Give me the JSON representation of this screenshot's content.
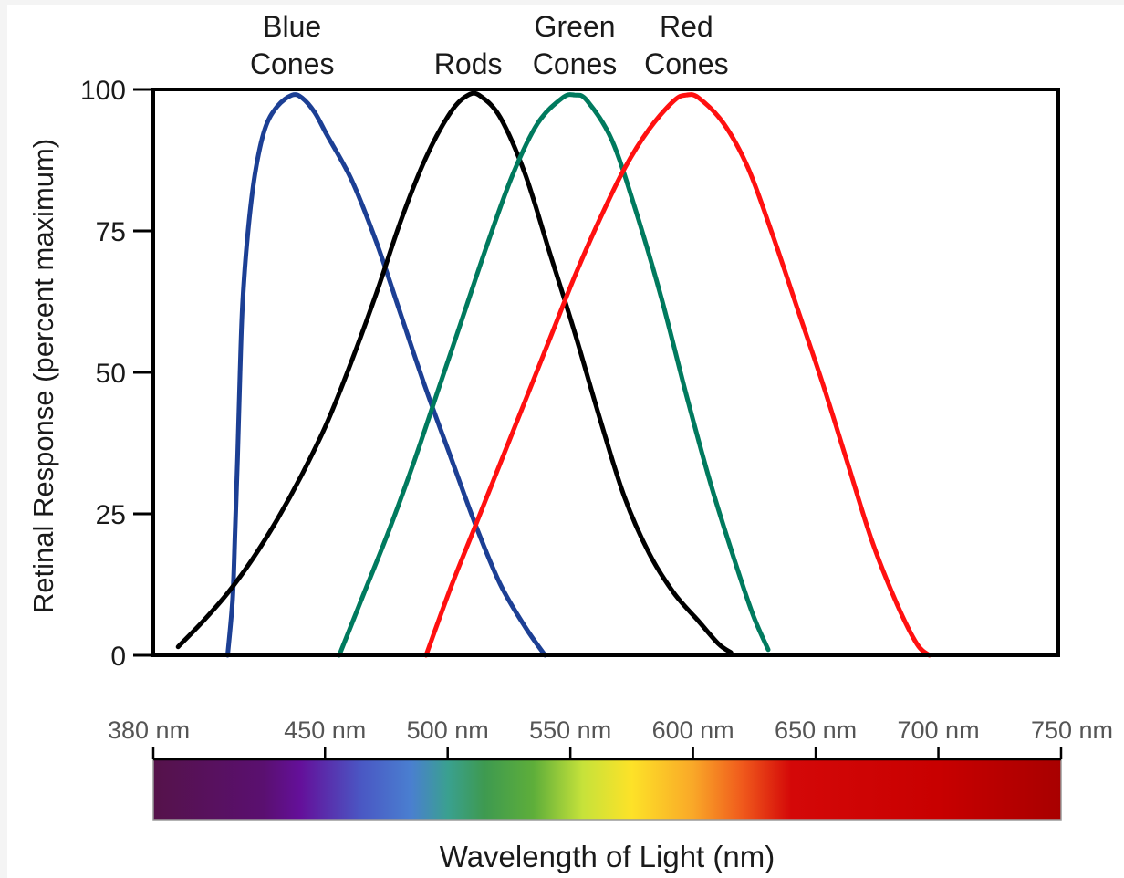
{
  "chart_data": {
    "type": "line",
    "ylabel": "Retinal Response (percent maximum)",
    "xlabel": "Wavelength of Light (nm)",
    "ylim": [
      0,
      100
    ],
    "xlim": [
      380,
      750
    ],
    "yticks": [
      "0",
      "25",
      "50",
      "75",
      "100"
    ],
    "wavelength_ticks": [
      {
        "value": 380,
        "label": "380 nm"
      },
      {
        "value": 450,
        "label": "450 nm"
      },
      {
        "value": 500,
        "label": "500 nm"
      },
      {
        "value": 550,
        "label": "550 nm"
      },
      {
        "value": 600,
        "label": "600 nm"
      },
      {
        "value": 650,
        "label": "650 nm"
      },
      {
        "value": 700,
        "label": "700 nm"
      },
      {
        "value": 750,
        "label": "750 nm"
      }
    ],
    "series": [
      {
        "label_lines": [
          "Blue",
          "Cones"
        ],
        "color": "#1c3f94",
        "points": [
          [
            410,
            0
          ],
          [
            412,
            10
          ],
          [
            413,
            22
          ],
          [
            414,
            35
          ],
          [
            415,
            50
          ],
          [
            416,
            62
          ],
          [
            418,
            74
          ],
          [
            421,
            85
          ],
          [
            425,
            93
          ],
          [
            430,
            97
          ],
          [
            436,
            99
          ],
          [
            440,
            98.5
          ],
          [
            445,
            96
          ],
          [
            450,
            92
          ],
          [
            460,
            84
          ],
          [
            470,
            73
          ],
          [
            480,
            60
          ],
          [
            490,
            47
          ],
          [
            500,
            35
          ],
          [
            510,
            23
          ],
          [
            520,
            12.5
          ],
          [
            530,
            5
          ],
          [
            538,
            0
          ]
        ]
      },
      {
        "label_lines": [
          "Rods"
        ],
        "color": "#000000",
        "points": [
          [
            390,
            1.5
          ],
          [
            400,
            6
          ],
          [
            410,
            11
          ],
          [
            420,
            17
          ],
          [
            430,
            24
          ],
          [
            440,
            32
          ],
          [
            450,
            41
          ],
          [
            460,
            52
          ],
          [
            470,
            64
          ],
          [
            480,
            77
          ],
          [
            490,
            88
          ],
          [
            500,
            96
          ],
          [
            507,
            99
          ],
          [
            512,
            98.8
          ],
          [
            520,
            95
          ],
          [
            530,
            85
          ],
          [
            540,
            71
          ],
          [
            550,
            57
          ],
          [
            560,
            42
          ],
          [
            570,
            28
          ],
          [
            580,
            18
          ],
          [
            590,
            11
          ],
          [
            600,
            6
          ],
          [
            608,
            2
          ],
          [
            613,
            0.5
          ]
        ]
      },
      {
        "label_lines": [
          "Green",
          "Cones"
        ],
        "color": "#007a5e",
        "points": [
          [
            455,
            0
          ],
          [
            465,
            11
          ],
          [
            475,
            22
          ],
          [
            485,
            34
          ],
          [
            495,
            47
          ],
          [
            505,
            60
          ],
          [
            515,
            73
          ],
          [
            525,
            85
          ],
          [
            535,
            94
          ],
          [
            545,
            98.5
          ],
          [
            550,
            99
          ],
          [
            555,
            98
          ],
          [
            565,
            91
          ],
          [
            575,
            78
          ],
          [
            585,
            63
          ],
          [
            595,
            46
          ],
          [
            605,
            30
          ],
          [
            615,
            16
          ],
          [
            622,
            7
          ],
          [
            628,
            1
          ]
        ]
      },
      {
        "label_lines": [
          "Red",
          "Cones"
        ],
        "color": "#ff1010",
        "points": [
          [
            490,
            0
          ],
          [
            500,
            12
          ],
          [
            510,
            23
          ],
          [
            520,
            34
          ],
          [
            530,
            45
          ],
          [
            540,
            56
          ],
          [
            550,
            67
          ],
          [
            560,
            77
          ],
          [
            570,
            86
          ],
          [
            580,
            93
          ],
          [
            590,
            98
          ],
          [
            595,
            99
          ],
          [
            600,
            98.5
          ],
          [
            610,
            94
          ],
          [
            620,
            86
          ],
          [
            630,
            74
          ],
          [
            640,
            61
          ],
          [
            650,
            48
          ],
          [
            660,
            34
          ],
          [
            670,
            20
          ],
          [
            680,
            9
          ],
          [
            688,
            2
          ],
          [
            693,
            0
          ]
        ]
      }
    ],
    "spectrum_stops": [
      {
        "nm": 380,
        "color": "#55124a"
      },
      {
        "nm": 425,
        "color": "#5a1070"
      },
      {
        "nm": 440,
        "color": "#64109a"
      },
      {
        "nm": 465,
        "color": "#4a58c4"
      },
      {
        "nm": 485,
        "color": "#4a7fd0"
      },
      {
        "nm": 500,
        "color": "#3aa090"
      },
      {
        "nm": 515,
        "color": "#3e9a50"
      },
      {
        "nm": 535,
        "color": "#5eae3a"
      },
      {
        "nm": 555,
        "color": "#c6e23a"
      },
      {
        "nm": 575,
        "color": "#fde228"
      },
      {
        "nm": 600,
        "color": "#f9a828"
      },
      {
        "nm": 620,
        "color": "#f05a1c"
      },
      {
        "nm": 640,
        "color": "#d40808"
      },
      {
        "nm": 700,
        "color": "#c80000"
      },
      {
        "nm": 750,
        "color": "#a80000"
      }
    ]
  }
}
